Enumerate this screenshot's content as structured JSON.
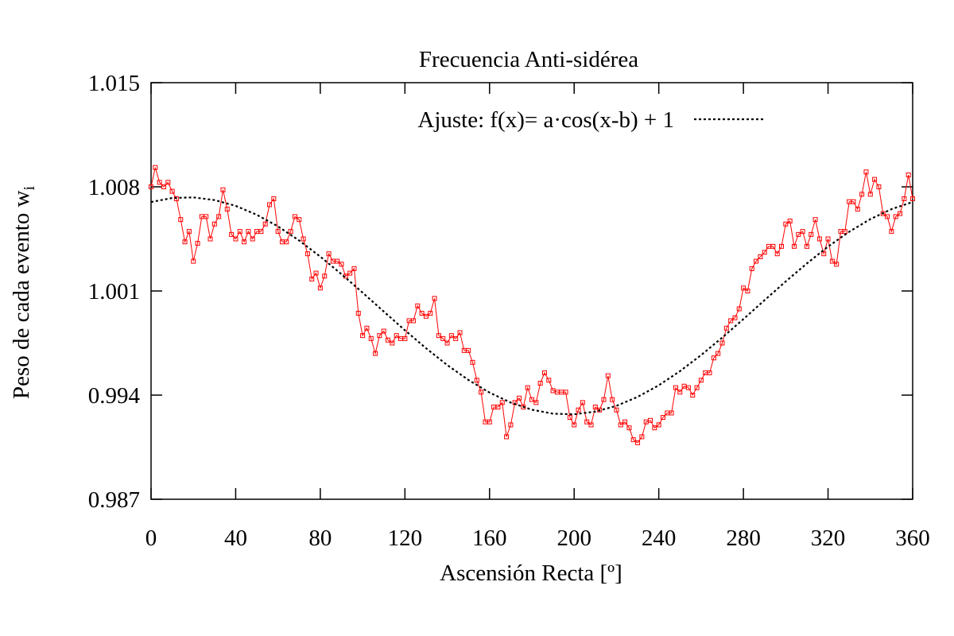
{
  "chart_data": {
    "type": "line",
    "title": "Frecuencia Anti-sidérea",
    "xlabel": "Ascensión Recta [º]",
    "ylabel": "Peso de cada evento w",
    "ylabel_subscript": "i",
    "xlim": [
      0,
      360
    ],
    "xticks": [
      0,
      40,
      80,
      120,
      160,
      200,
      240,
      280,
      320,
      360
    ],
    "ylim": [
      0.987,
      1.015
    ],
    "yticks": [
      0.987,
      0.994,
      1.001,
      1.008,
      1.015
    ],
    "grid": false,
    "legend": "top",
    "series": [
      {
        "color": "#ff0000",
        "marker": "square",
        "line_style": "solid",
        "x": [
          0,
          2,
          4,
          6,
          8,
          10,
          12,
          14,
          16,
          18,
          20,
          22,
          24,
          26,
          28,
          30,
          32,
          34,
          36,
          38,
          40,
          42,
          44,
          46,
          48,
          50,
          52,
          54,
          56,
          58,
          60,
          62,
          64,
          66,
          68,
          70,
          72,
          74,
          76,
          78,
          80,
          82,
          84,
          86,
          88,
          90,
          92,
          94,
          96,
          98,
          100,
          102,
          104,
          106,
          108,
          110,
          112,
          114,
          116,
          118,
          120,
          122,
          124,
          126,
          128,
          130,
          132,
          134,
          136,
          138,
          140,
          142,
          144,
          146,
          148,
          150,
          152,
          154,
          156,
          158,
          160,
          162,
          164,
          166,
          168,
          170,
          172,
          174,
          176,
          178,
          180,
          182,
          184,
          186,
          188,
          190,
          192,
          194,
          196,
          198,
          200,
          202,
          204,
          206,
          208,
          210,
          212,
          214,
          216,
          218,
          220,
          222,
          224,
          226,
          228,
          230,
          232,
          234,
          236,
          238,
          240,
          242,
          244,
          246,
          248,
          250,
          252,
          254,
          256,
          258,
          260,
          262,
          264,
          266,
          268,
          270,
          272,
          274,
          276,
          278,
          280,
          282,
          284,
          286,
          288,
          290,
          292,
          294,
          296,
          298,
          300,
          302,
          304,
          306,
          308,
          310,
          312,
          314,
          316,
          318,
          320,
          322,
          324,
          326,
          328,
          330,
          332,
          334,
          336,
          338,
          340,
          342,
          344,
          346,
          348,
          350,
          352,
          354,
          356,
          358,
          360
        ],
        "values": [
          1.008,
          1.0093,
          1.0083,
          1.008,
          1.0083,
          1.0077,
          1.0072,
          1.0058,
          1.0043,
          1.005,
          1.003,
          1.0042,
          1.006,
          1.006,
          1.0045,
          1.0055,
          1.006,
          1.0078,
          1.0065,
          1.0048,
          1.0045,
          1.005,
          1.0043,
          1.005,
          1.0045,
          1.005,
          1.005,
          1.0055,
          1.0068,
          1.0072,
          1.005,
          1.0043,
          1.0043,
          1.005,
          1.006,
          1.0058,
          1.0045,
          1.0035,
          1.0018,
          1.0022,
          1.0012,
          1.002,
          1.0035,
          1.003,
          1.003,
          1.0028,
          1.002,
          1.0022,
          1.0025,
          0.9995,
          0.998,
          0.9985,
          0.9978,
          0.9968,
          0.998,
          0.9983,
          0.9977,
          0.9975,
          0.998,
          0.9978,
          0.9978,
          0.999,
          0.999,
          1.0,
          0.9995,
          0.9993,
          0.9995,
          1.0005,
          0.998,
          0.9978,
          0.9975,
          0.998,
          0.9978,
          0.9982,
          0.997,
          0.997,
          0.9962,
          0.995,
          0.9942,
          0.9922,
          0.9922,
          0.9932,
          0.9932,
          0.9935,
          0.9912,
          0.992,
          0.9935,
          0.9938,
          0.9932,
          0.9945,
          0.9937,
          0.9935,
          0.9948,
          0.9955,
          0.995,
          0.9943,
          0.9942,
          0.9942,
          0.9942,
          0.9925,
          0.992,
          0.993,
          0.9935,
          0.9922,
          0.992,
          0.9932,
          0.993,
          0.9937,
          0.9953,
          0.9937,
          0.993,
          0.992,
          0.9922,
          0.9918,
          0.991,
          0.9908,
          0.9912,
          0.9922,
          0.9923,
          0.9918,
          0.992,
          0.9925,
          0.9928,
          0.9928,
          0.9945,
          0.9942,
          0.9946,
          0.9945,
          0.994,
          0.9945,
          0.995,
          0.9955,
          0.9955,
          0.9965,
          0.9968,
          0.9975,
          0.9985,
          0.999,
          0.9992,
          0.9998,
          1.0012,
          1.001,
          1.0025,
          1.003,
          1.0033,
          1.0036,
          1.004,
          1.004,
          1.0035,
          1.004,
          1.0055,
          1.0057,
          1.004,
          1.0048,
          1.005,
          1.004,
          1.0048,
          1.0058,
          1.0045,
          1.0035,
          1.0045,
          1.003,
          1.0028,
          1.005,
          1.005,
          1.007,
          1.007,
          1.0065,
          1.0075,
          1.009,
          1.0075,
          1.0085,
          1.008,
          1.0062,
          1.006,
          1.005,
          1.006,
          1.0062,
          1.0072,
          1.0088,
          1.0072
        ]
      },
      {
        "name": "Ajuste: f(x)= a·cos(x-b) + 1",
        "color": "#000000",
        "line_style": "dotted",
        "x": [
          0,
          10,
          20,
          30,
          40,
          50,
          60,
          70,
          80,
          90,
          100,
          110,
          120,
          130,
          140,
          150,
          160,
          170,
          180,
          190,
          200,
          210,
          220,
          230,
          240,
          250,
          260,
          270,
          280,
          290,
          300,
          310,
          320,
          330,
          340,
          350,
          360
        ],
        "values": [
          1.00698,
          1.00725,
          1.00729,
          1.00711,
          1.00672,
          1.00612,
          1.00534,
          1.00439,
          1.00331,
          1.00213,
          1.00089,
          0.99962,
          0.99836,
          0.99715,
          0.99602,
          0.99502,
          0.99417,
          0.9935,
          0.99302,
          0.99275,
          0.99271,
          0.99289,
          0.99328,
          0.99388,
          0.99466,
          0.99561,
          0.99669,
          0.99787,
          0.99911,
          1.00038,
          1.00164,
          1.00285,
          1.00398,
          1.00498,
          1.00583,
          1.0065,
          1.00698
        ]
      }
    ]
  }
}
